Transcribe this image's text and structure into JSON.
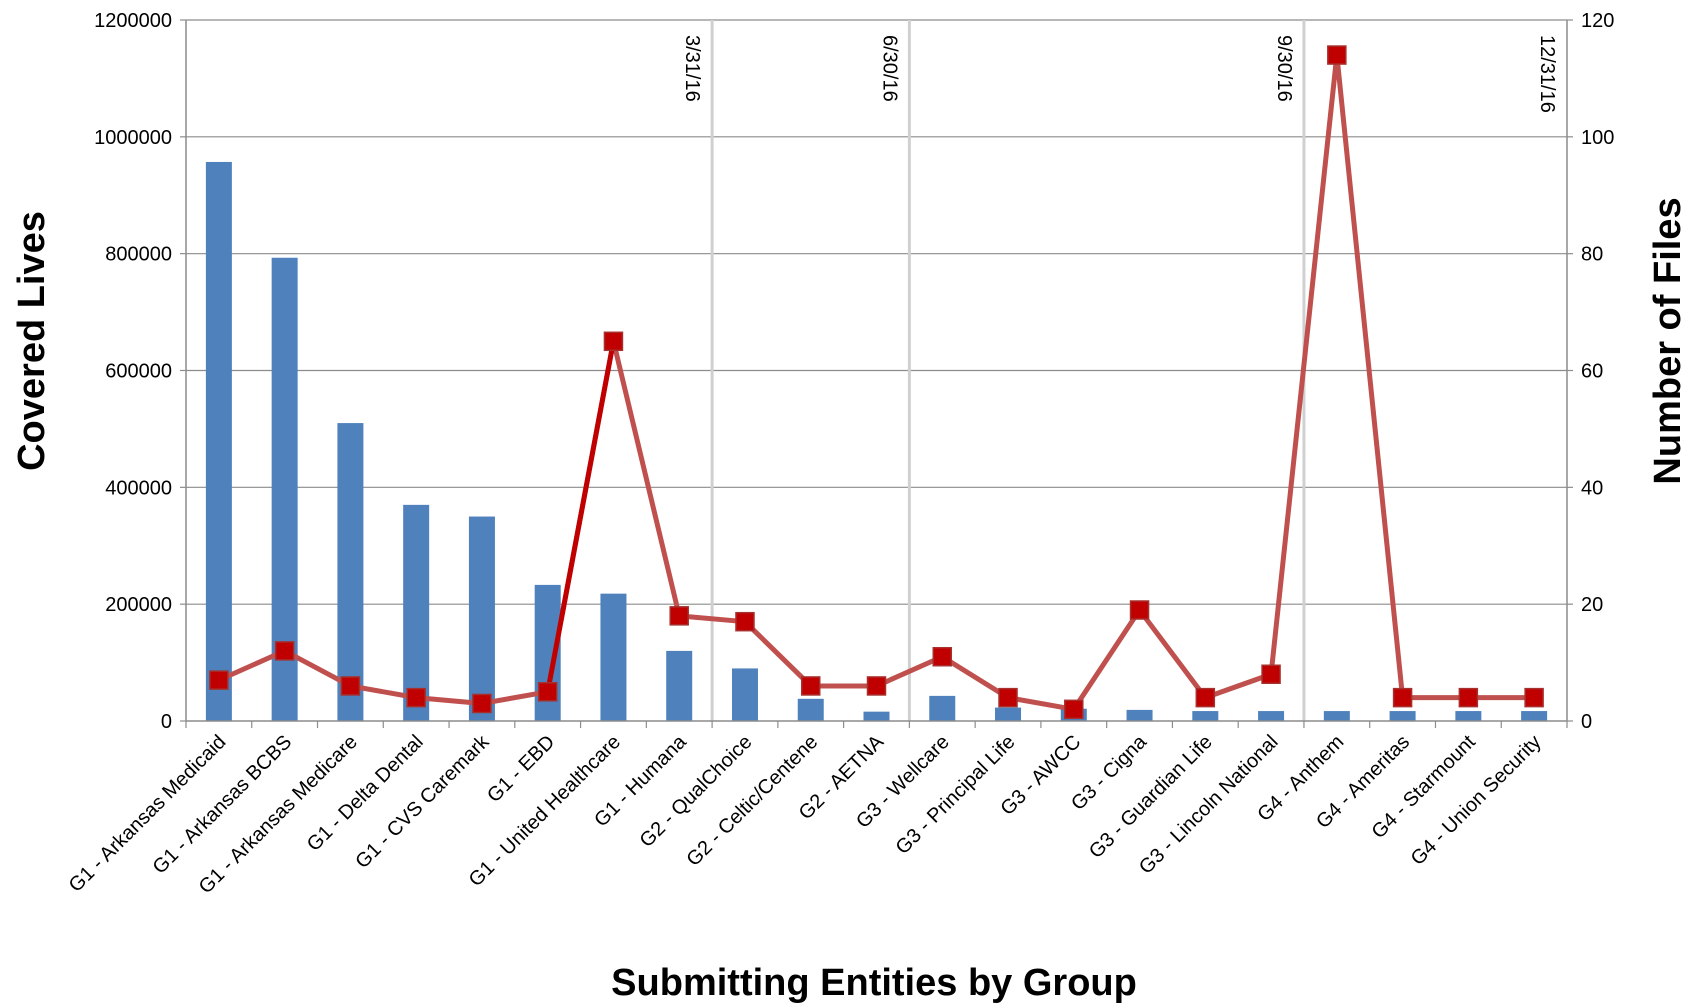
{
  "chart_data": {
    "type": "bar+line",
    "xlabel": "Submitting Entities by Group",
    "ylabel": "Covered Lives",
    "y2label": "Number of Files",
    "ylim": [
      0,
      1200000
    ],
    "y2lim": [
      0,
      120
    ],
    "yticks": [
      "0",
      "200000",
      "400000",
      "600000",
      "800000",
      "1000000",
      "1200000"
    ],
    "y2ticks": [
      "0",
      "20",
      "40",
      "60",
      "80",
      "100",
      "120"
    ],
    "grid": true,
    "categories": [
      "G1 - Arkansas Medicaid",
      "G1 - Arkansas BCBS",
      "G1 - Arkansas Medicare",
      "G1 - Delta Dental",
      "G1 - CVS Caremark",
      "G1 - EBD",
      "G1 - United Healthcare",
      "G1 - Humana",
      "G2 - QualChoice",
      "G2 - Celtic/Centene",
      "G2 - AETNA",
      "G3 - Wellcare",
      "G3 - Principal Life",
      "G3 - AWCC",
      "G3 - Cigna",
      "G3 - Guardian Life",
      "G3 - Lincoln National",
      "G4 - Anthem",
      "G4 - Ameritas",
      "G4 - Starmount",
      "G4 - Union Security"
    ],
    "series": [
      {
        "type": "bar",
        "axis": "left",
        "color": "#4f81bd",
        "values": [
          957000,
          793000,
          510000,
          370000,
          350000,
          233000,
          218000,
          120000,
          90000,
          38000,
          16000,
          43000,
          23000,
          21000,
          19000,
          17000,
          17000,
          17000,
          17000,
          17000,
          17000
        ]
      },
      {
        "type": "line",
        "axis": "right",
        "color": "#c0504d",
        "marker_color": "#c00000",
        "values": [
          7,
          12,
          6,
          4,
          3,
          5,
          65,
          18,
          17,
          6,
          6,
          11,
          4,
          2,
          19,
          4,
          8,
          114,
          4,
          4,
          4
        ]
      }
    ],
    "annotations": [
      {
        "after_category": 7,
        "label": "3/31/16"
      },
      {
        "after_category": 10,
        "label": "6/30/16"
      },
      {
        "after_category": 16,
        "label": "9/30/16"
      },
      {
        "after_category": 20,
        "label": "12/31/16"
      }
    ]
  }
}
